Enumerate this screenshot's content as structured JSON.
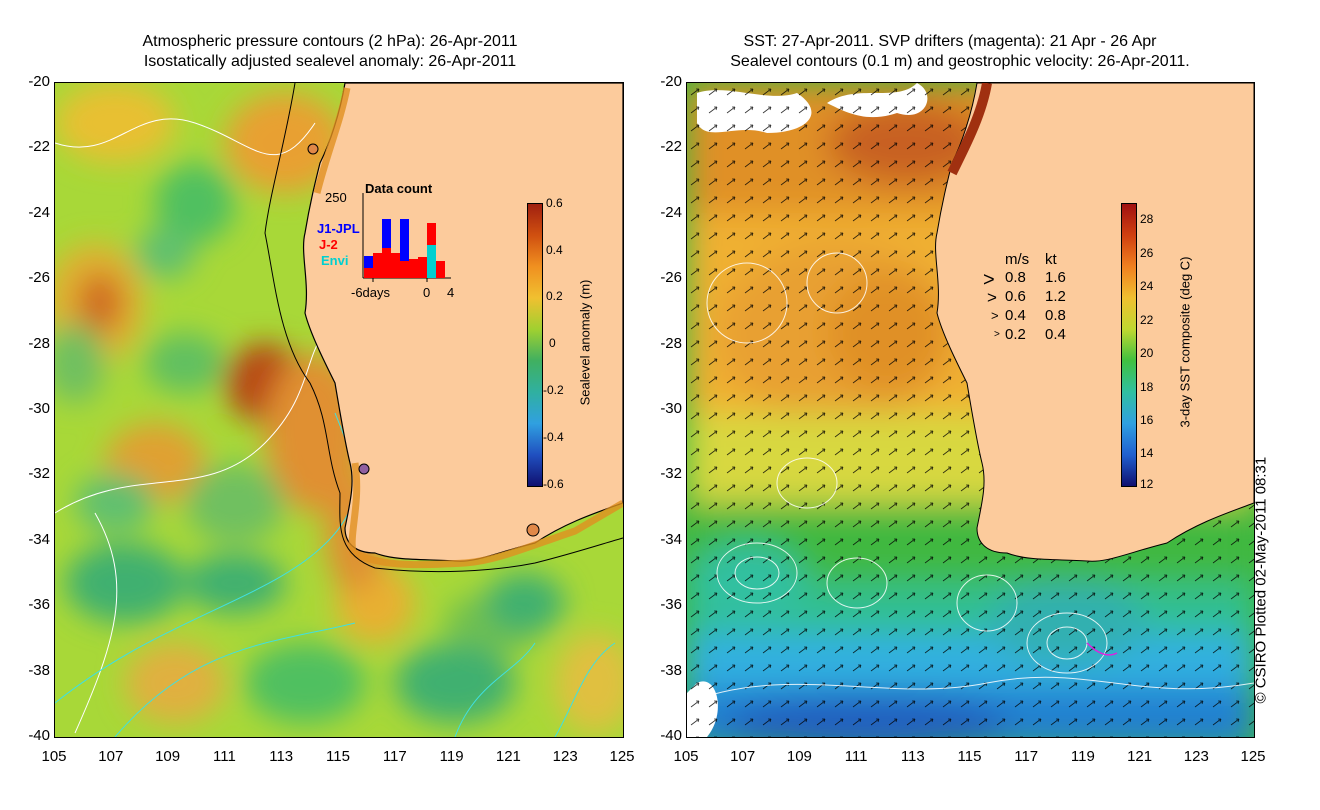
{
  "left_title": {
    "line1": "Atmospheric pressure contours (2 hPa): 26-Apr-2011",
    "line2": "Isostatically adjusted sealevel anomaly: 26-Apr-2011"
  },
  "right_title": {
    "line1": "SST: 27-Apr-2011. SVP drifters (magenta): 21 Apr - 26 Apr",
    "line2": "Sealevel contours (0.1 m) and geostrophic velocity: 26-Apr-2011."
  },
  "y_ticks": [
    "-20",
    "-22",
    "-24",
    "-26",
    "-28",
    "-30",
    "-32",
    "-34",
    "-36",
    "-38",
    "-40"
  ],
  "x_ticks": [
    "105",
    "107",
    "109",
    "111",
    "113",
    "115",
    "117",
    "119",
    "121",
    "123",
    "125"
  ],
  "inset": {
    "title": "Data count",
    "ymax": "250",
    "missions": [
      "J1-JPL",
      "J-2",
      "Envi"
    ],
    "xlabel_left": "-6days",
    "xlabel_0": "0",
    "xlabel_right": "4"
  },
  "left_colorbar": {
    "label": "Sealevel anomaly (m)",
    "ticks": [
      "0.6",
      "0.4",
      "0.2",
      "0",
      "-0.2",
      "-0.4",
      "-0.6"
    ]
  },
  "right_colorbar": {
    "label": "3-day SST composite (deg C)",
    "ticks": [
      "28",
      "26",
      "24",
      "22",
      "20",
      "18",
      "16",
      "14",
      "12"
    ]
  },
  "velocity_key": {
    "header_ms": "m/s",
    "header_kt": "kt",
    "rows": [
      {
        "ms": "0.8",
        "kt": "1.6"
      },
      {
        "ms": "0.6",
        "kt": "1.2"
      },
      {
        "ms": "0.4",
        "kt": "0.8"
      },
      {
        "ms": "0.2",
        "kt": "0.4"
      }
    ]
  },
  "credit": "© CSIRO Plotted 02-May-2011 08:31",
  "colors": {
    "land": "#fccb9c",
    "coast": "#000000",
    "contour_white": "#ffffff",
    "contour_cyan": "#40e0e0",
    "j1": "#0000ff",
    "j2": "#ff0000",
    "envi": "#00d0d0"
  }
}
